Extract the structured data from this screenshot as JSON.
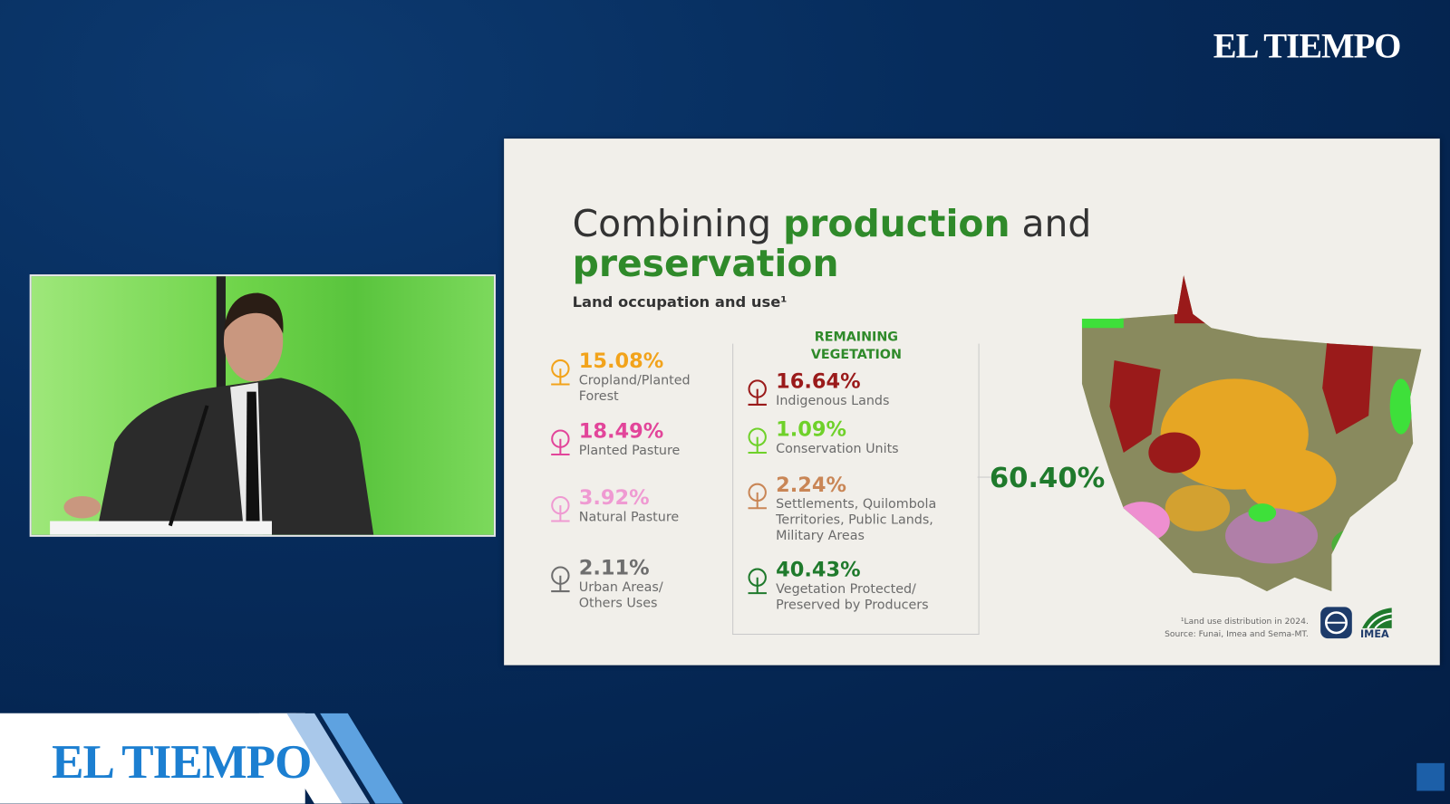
{
  "header_logo": "EL TIEMPO",
  "slide": {
    "title": {
      "part1": "Combining",
      "highlight1": "production",
      "part2": "and",
      "highlight2": "preservation"
    },
    "subtitle": "Land occupation and use¹",
    "production_items": [
      {
        "value": "15.08%",
        "label": "Cropland/Planted Forest",
        "color": "#f2a31b"
      },
      {
        "value": "18.49%",
        "label": "Planted Pasture",
        "color": "#e2459a"
      },
      {
        "value": "3.92%",
        "label": "Natural Pasture",
        "color": "#ef9ad2"
      },
      {
        "value": "2.11%",
        "label": "Urban Areas/ Others Uses",
        "color": "#6e6e6e"
      }
    ],
    "remaining_vegetation": {
      "heading": "REMAINING VEGETATION",
      "items": [
        {
          "value": "16.64%",
          "label": "Indigenous Lands",
          "color": "#9a1a1a"
        },
        {
          "value": "1.09%",
          "label": "Conservation Units",
          "color": "#6fd12a"
        },
        {
          "value": "2.24%",
          "label": "Settlements, Quilombola Territories, Public Lands, Military Areas",
          "color": "#c98656"
        },
        {
          "value": "40.43%",
          "label": "Vegetation Protected/ Preserved by Producers",
          "color": "#1f7a2c"
        }
      ],
      "total": "60.40%"
    },
    "footnote": "¹Land use distribution in 2024.",
    "source": "Source: Funai, Imea and Sema-MT.",
    "logo_label": "IMEA"
  },
  "footer_logo": "EL TIEMPO"
}
